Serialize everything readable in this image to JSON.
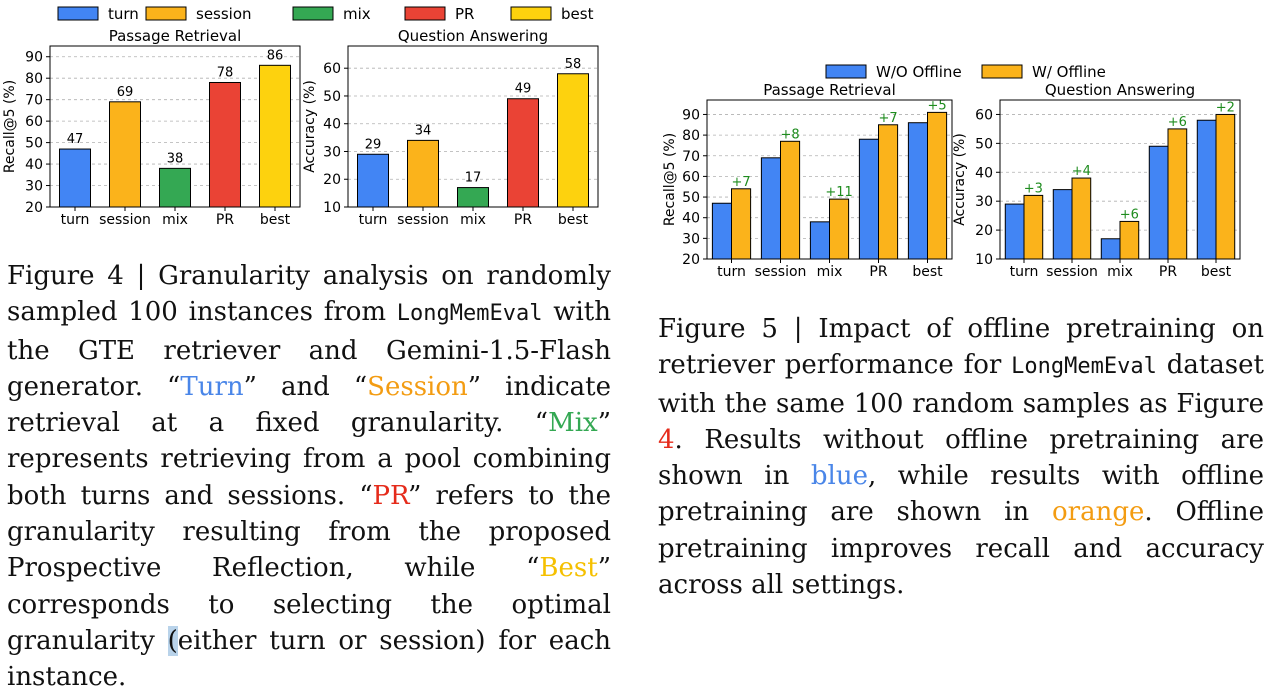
{
  "figure4": {
    "legend": [
      {
        "label": "turn",
        "color": "#4285f4"
      },
      {
        "label": "session",
        "color": "#fbb31b"
      },
      {
        "label": "mix",
        "color": "#34a853"
      },
      {
        "label": "PR",
        "color": "#ea4335"
      },
      {
        "label": "best",
        "color": "#fdd20e"
      }
    ],
    "caption": {
      "s1": "Figure 4 | Granularity analysis on randomly sampled 100 instances from ",
      "dataset": "LongMemEval",
      "s2": " with the GTE retriever and Gemini-1.5-Flash generator. “",
      "turn": "Turn",
      "s3": "” and “",
      "session": "Session",
      "s4": "” indicate retrieval at a fixed granularity. “",
      "mix": "Mix",
      "s5": "” represents retrieving from a pool combining both turns and sessions. “",
      "pr": "PR",
      "s6": "” refers to the granularity resulting from the proposed Prospective Reflection, while “",
      "best": "Best",
      "s7": "” corresponds to selecting the optimal granularity ",
      "paren": "(",
      "s8": "either turn or session) for each instance."
    }
  },
  "figure5": {
    "legend": [
      {
        "label": "W/O Offline",
        "color": "#4285f4"
      },
      {
        "label": "W/ Offline",
        "color": "#fbb31b"
      }
    ],
    "caption": {
      "s1": "Figure 5 | Impact of offline pretraining on retriever performance for ",
      "dataset": "LongMemEval",
      "s2": " dataset with the same 100 random samples as Figure ",
      "ref": "4",
      "s3": ". Results without offline pretraining are shown in ",
      "blue": "blue",
      "s4": ", while results with offline pretraining are shown in ",
      "orange": "orange",
      "s5": ". Offline pretraining improves recall and accuracy across all settings."
    }
  },
  "chart_data": [
    {
      "type": "bar",
      "title": "Passage Retrieval",
      "ylabel": "Recall@5 (%)",
      "categories": [
        "turn",
        "session",
        "mix",
        "PR",
        "best"
      ],
      "values": [
        47,
        69,
        38,
        78,
        86
      ],
      "colors": [
        "#4285f4",
        "#fbb31b",
        "#34a853",
        "#ea4335",
        "#fdd20e"
      ],
      "ylim": [
        20,
        95
      ],
      "yticks": [
        20,
        30,
        40,
        50,
        60,
        70,
        80,
        90
      ],
      "grid": true
    },
    {
      "type": "bar",
      "title": "Question Answering",
      "ylabel": "Accuracy (%)",
      "categories": [
        "turn",
        "session",
        "mix",
        "PR",
        "best"
      ],
      "values": [
        29,
        34,
        17,
        49,
        58
      ],
      "colors": [
        "#4285f4",
        "#fbb31b",
        "#34a853",
        "#ea4335",
        "#fdd20e"
      ],
      "ylim": [
        10,
        68
      ],
      "yticks": [
        10,
        20,
        30,
        40,
        50,
        60
      ],
      "grid": true
    },
    {
      "type": "bar",
      "title": "Passage Retrieval",
      "ylabel": "Recall@5 (%)",
      "categories": [
        "turn",
        "session",
        "mix",
        "PR",
        "best"
      ],
      "series": [
        {
          "name": "W/O Offline",
          "values": [
            47,
            69,
            38,
            78,
            86
          ],
          "color": "#4285f4"
        },
        {
          "name": "W/ Offline",
          "values": [
            54,
            77,
            49,
            85,
            91
          ],
          "color": "#fbb31b"
        }
      ],
      "deltas": [
        "+7",
        "+8",
        "+11",
        "+7",
        "+5"
      ],
      "ylim": [
        20,
        97
      ],
      "yticks": [
        20,
        30,
        40,
        50,
        60,
        70,
        80,
        90
      ],
      "grid": true
    },
    {
      "type": "bar",
      "title": "Question Answering",
      "ylabel": "Accuracy (%)",
      "categories": [
        "turn",
        "session",
        "mix",
        "PR",
        "best"
      ],
      "series": [
        {
          "name": "W/O Offline",
          "values": [
            29,
            34,
            17,
            49,
            58
          ],
          "color": "#4285f4"
        },
        {
          "name": "W/ Offline",
          "values": [
            32,
            38,
            23,
            55,
            60
          ],
          "color": "#fbb31b"
        }
      ],
      "deltas": [
        "+3",
        "+4",
        "+6",
        "+6",
        "+2"
      ],
      "ylim": [
        10,
        65
      ],
      "yticks": [
        10,
        20,
        30,
        40,
        50,
        60
      ],
      "grid": true
    }
  ]
}
